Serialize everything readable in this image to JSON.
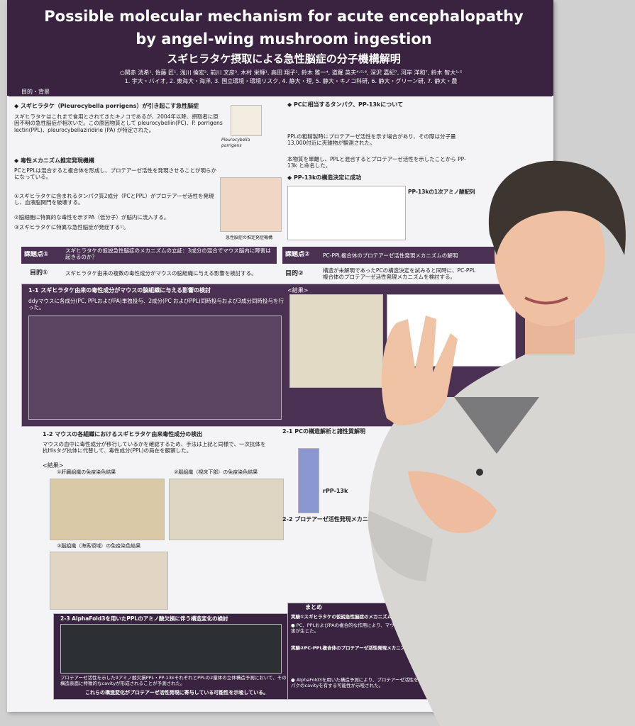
{
  "poster": {
    "title": [
      "Possible molecular mechanism for acute encephalopathy",
      "by angel-wing mushroom ingestion"
    ],
    "subtitle": "スギヒラタケ摂取による急性脳症の分子機構解明",
    "authors": "○関赤 洸希¹, 佐藤 匠¹, 浅川 倫宏², 前川 文彦³, 木村 栄輝¹, 高田 翔子¹, 鈴木 雅一⁴, 道羅 英夫⁴·⁵·⁶, 深沢 嘉紀⁷, 河岸 洋和⁷, 鈴木 智大¹·⁵",
    "affiliations": "1. 宇大・バイオ, 2. 東海大・海洋, 3. 国立環境・環境リスク, 4. 静大・理, 5. 静大・キノコ科研, 6. 静大・グリーン研, 7. 静大・農",
    "background": {
      "heading": "目的・背景",
      "topic": "◆ スギヒラタケ（Pleurocybella porrigens）が引き起こす急性脳症",
      "text": "スギヒラタケはこれまで食用とされてきたキノコであるが、2004年以降、摂取者に原因不明の急性脳症が相次いだ。この原因物質として pleurocybellin(PC)、P. porrigens lectin(PPL)、pleurocybellaziridine (PA) が特定された。",
      "caption": "Pleurocybella porrigens",
      "mechanism": "◆ 毒性メカニズム推定発現機構",
      "mechanism_text": "PCとPPLは混合すると複合体を形成し、プロテアーゼ活性を発現させることが明らかになっている。",
      "steps": [
        "①スギヒラタケに含まれるタンパク質2成分（PCとPPL）がプロテアーゼ活性を発現し、血液脳関門を破壊する。",
        "②脳細胞に特異的な毒性を示すPA（低分子）が脳内に流入する。",
        "③スギヒラタケに特異な急性脳症が発症する¹⁾。"
      ],
      "figure_caption": "急性脳症の推定発症機構"
    },
    "pc": {
      "heading": "◆ PCに相当するタンパク、PP-13kについて",
      "text": "PPLの粗精製時にプロテアーゼ活性を示す場合があり、その際は分子量13,000付近に夾雑物が観測された。",
      "note": "本物質を単離し、PPLと混合するとプロテアーゼ活性を示したことから PP-13k と命名した。",
      "structure": "◆ PP-13kの構造決定に成功",
      "seq_heading": "PP-13kの1次アミノ酸配列"
    },
    "problem1": {
      "label": "課題点①",
      "text": "スギヒラタケの仮説急性脳症のメカニズムの立証：3成分の混合でマウス脳内に障害は起きるのか？"
    },
    "aim1": {
      "label": "目的①",
      "text": "スギヒラタケ由来の複数の毒性成分がマウスの脳組織に与える影響を検討する。"
    },
    "problem2": {
      "label": "課題点②",
      "text": "PC-PPL複合体のプロテアーゼ活性発現メカニズムの解明"
    },
    "aim2": {
      "label": "目的②",
      "text": "構造が未解明であったPCの構造決定を試みると同時に、PC-PPL複合体のプロテアーゼ活性発現メカニズムを検討する。"
    },
    "s11": {
      "heading": "1-1  スギヒラタケ由来の毒性成分がマウスの脳組織に与える影響の検討",
      "text": "ddyマウスに各成分(PC, PPLおよびPA)単独投与、2成分(PC およびPPL)同時投与および3成分同時投与を行った。",
      "results": "<結果>"
    },
    "s12": {
      "heading": "1-2  マウスの各組織におけるスギヒラタケ由来毒性成分の検出",
      "text": "マウスの血中に毒性成分が移行しているかを確認するため、手法は上記と同様で、一次抗体を抗Hisタグ抗体に代替して、毒性成分(PPL)の局在を観察した。",
      "results": "<結果>",
      "panels": [
        "①肝臓組織の免疫染色結果",
        "②脳組織（視床下部）の免疫染色結果",
        "③脳組織（海馬領域）の免疫染色結果"
      ]
    },
    "s21": {
      "heading": "2-1  PCの構造解析と諸性質解明",
      "band": "rPP-13k"
    },
    "s22": {
      "heading": "2-2  プロテアーゼ活性発現メカニズム"
    },
    "s23": {
      "heading": "2-3  AlphaFold3を用いたPPLのアミノ酸欠損に伴う構造変化の検討",
      "text": "プロテアーゼ活性を示した9アミノ酸欠損PPL・PP-13kそれぞれとPPLの2量体の立体構造予測において、その構造表面に特徴的なcavityが形成されることが予測された。",
      "conclusion": "これらの構造変化がプロテアーゼ活性発現に寄与している可能性を示唆している。"
    },
    "summary": {
      "heading": "まとめ",
      "items": [
        "実験①スギヒラタケの仮説急性脳症のメカニズムの立証",
        "● PC、PPLおよびPAの複合的な作用により、マウス脳内に特異的な障害が生じた。",
        "実験②PC-PPL複合体のプロテアーゼ活性発現メカニズムの解明",
        "● AlphaFold3を用いた構造予測により、プロテアーゼ活性を示すタンパクのcavityを有する可能性が示唆された。"
      ]
    }
  }
}
